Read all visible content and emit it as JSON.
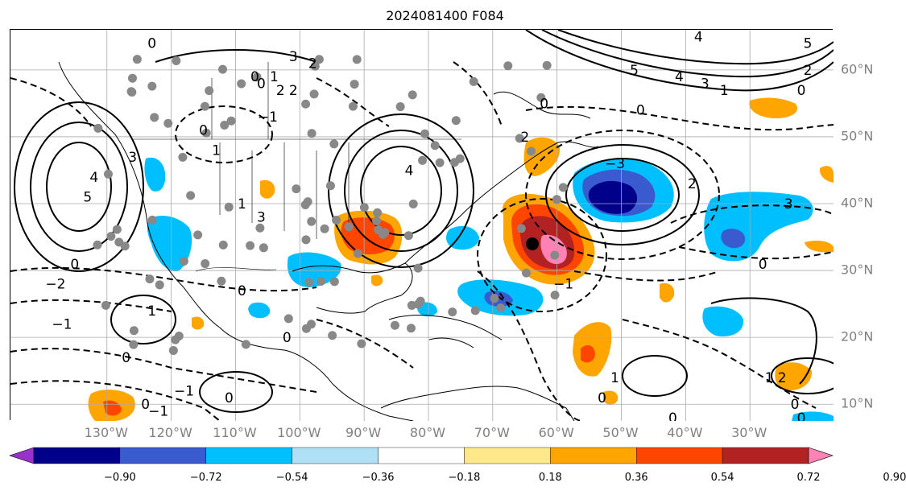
{
  "title": "2024081400 F084",
  "lon_labels": [
    "130°W",
    "120°W",
    "110°W",
    "100°W",
    "90°W",
    "80°W",
    "70°W",
    "60°W",
    "50°W",
    "40°W",
    "30°W"
  ],
  "lat_labels": [
    "60°N",
    "50°N",
    "40°N",
    "30°N",
    "20°N",
    "10°N"
  ],
  "colorbar": {
    "labels": [
      "−0.90",
      "−0.72",
      "−0.54",
      "−0.36",
      "−0.18",
      "0.18",
      "0.36",
      "0.54",
      "0.72",
      "0.90"
    ],
    "colors": [
      "#9932cc",
      "#00008b",
      "#3a5bd0",
      "#00bfff",
      "#b0e0f6",
      "#ffffff",
      "#ffe88a",
      "#ffa500",
      "#ff4500",
      "#b22222",
      "#ff82b4"
    ]
  },
  "contour_labels": [
    {
      "text": "0",
      "lon": -123,
      "lat": 64
    },
    {
      "text": "3",
      "lon": -101,
      "lat": 62
    },
    {
      "text": "2",
      "lon": -98,
      "lat": 61
    },
    {
      "text": "0",
      "lon": -107,
      "lat": 59
    },
    {
      "text": "1",
      "lon": -104,
      "lat": 59
    },
    {
      "text": "0",
      "lon": -106,
      "lat": 58
    },
    {
      "text": "2",
      "lon": -103,
      "lat": 57
    },
    {
      "text": "2",
      "lon": -101,
      "lat": 57
    },
    {
      "text": "−1",
      "lon": -105,
      "lat": 53
    },
    {
      "text": "0",
      "lon": -115,
      "lat": 51
    },
    {
      "text": "1",
      "lon": -113,
      "lat": 48
    },
    {
      "text": "4",
      "lon": -132,
      "lat": 44
    },
    {
      "text": "5",
      "lon": -133,
      "lat": 41
    },
    {
      "text": "3",
      "lon": -126,
      "lat": 47
    },
    {
      "text": "1",
      "lon": -109,
      "lat": 40
    },
    {
      "text": "3",
      "lon": -106,
      "lat": 38
    },
    {
      "text": "4",
      "lon": -83,
      "lat": 45
    },
    {
      "text": "0",
      "lon": -135,
      "lat": 31
    },
    {
      "text": "−2",
      "lon": -138,
      "lat": 28
    },
    {
      "text": "−1",
      "lon": -137,
      "lat": 22
    },
    {
      "text": "1",
      "lon": -123,
      "lat": 24
    },
    {
      "text": "0",
      "lon": -109,
      "lat": 27
    },
    {
      "text": "0",
      "lon": -102,
      "lat": 20
    },
    {
      "text": "0",
      "lon": -127,
      "lat": 17
    },
    {
      "text": "−1",
      "lon": -118,
      "lat": 12
    },
    {
      "text": "0",
      "lon": -111,
      "lat": 11
    },
    {
      "text": "0",
      "lon": -124,
      "lat": 10
    },
    {
      "text": "−1",
      "lon": -122,
      "lat": 9
    },
    {
      "text": "2",
      "lon": -65,
      "lat": 50
    },
    {
      "text": "0",
      "lon": -62,
      "lat": 55
    },
    {
      "text": "0",
      "lon": -47,
      "lat": 54
    },
    {
      "text": "5",
      "lon": -48,
      "lat": 60
    },
    {
      "text": "4",
      "lon": -41,
      "lat": 59
    },
    {
      "text": "3",
      "lon": -37,
      "lat": 58
    },
    {
      "text": "1",
      "lon": -34,
      "lat": 57
    },
    {
      "text": "0",
      "lon": -22,
      "lat": 57
    },
    {
      "text": "2",
      "lon": -21,
      "lat": 60
    },
    {
      "text": "5",
      "lon": -21,
      "lat": 64
    },
    {
      "text": "4",
      "lon": -38,
      "lat": 65
    },
    {
      "text": "−3",
      "lon": -51,
      "lat": 46
    },
    {
      "text": "2",
      "lon": -39,
      "lat": 43
    },
    {
      "text": "3",
      "lon": -24,
      "lat": 40
    },
    {
      "text": "0",
      "lon": -28,
      "lat": 31
    },
    {
      "text": "−1",
      "lon": -59,
      "lat": 28
    },
    {
      "text": "1",
      "lon": -51,
      "lat": 14
    },
    {
      "text": "0",
      "lon": -53,
      "lat": 11
    },
    {
      "text": "0",
      "lon": -42,
      "lat": 8
    },
    {
      "text": "1",
      "lon": -27,
      "lat": 14
    },
    {
      "text": "2",
      "lon": -25,
      "lat": 14
    },
    {
      "text": "0",
      "lon": -23,
      "lat": 10
    },
    {
      "text": "0",
      "lon": -22,
      "lat": 8
    }
  ]
}
